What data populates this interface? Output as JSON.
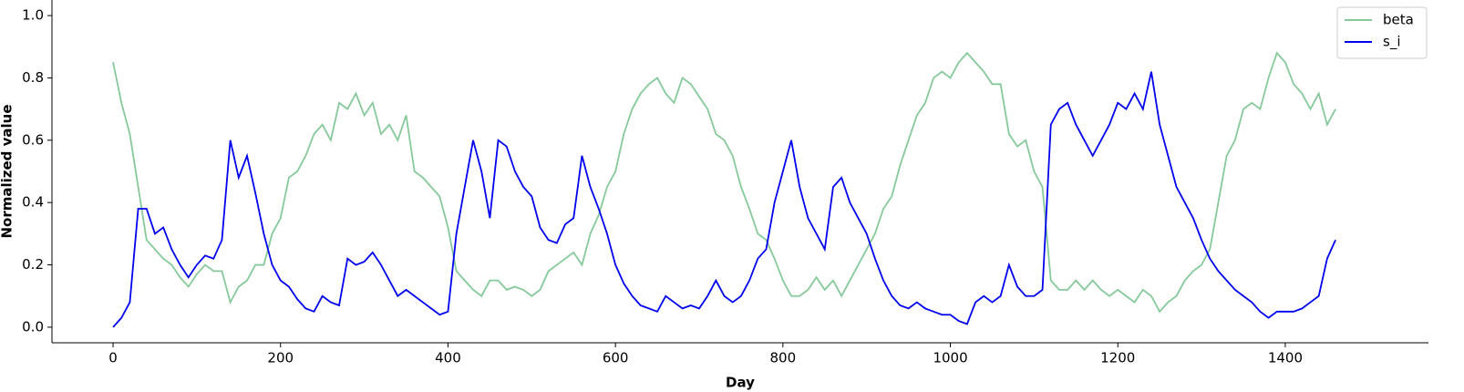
{
  "chart_data": {
    "type": "line",
    "x_label": "Day",
    "y_label": "Normalized value",
    "x": [
      0,
      10,
      20,
      30,
      40,
      50,
      60,
      70,
      80,
      90,
      100,
      110,
      120,
      130,
      140,
      150,
      160,
      170,
      180,
      190,
      200,
      210,
      220,
      230,
      240,
      250,
      260,
      270,
      280,
      290,
      300,
      310,
      320,
      330,
      340,
      350,
      360,
      370,
      380,
      390,
      400,
      410,
      420,
      430,
      440,
      450,
      460,
      470,
      480,
      490,
      500,
      510,
      520,
      530,
      540,
      550,
      560,
      570,
      580,
      590,
      600,
      610,
      620,
      630,
      640,
      650,
      660,
      670,
      680,
      690,
      700,
      710,
      720,
      730,
      740,
      750,
      760,
      770,
      780,
      790,
      800,
      810,
      820,
      830,
      840,
      850,
      860,
      870,
      880,
      890,
      900,
      910,
      920,
      930,
      940,
      950,
      960,
      970,
      980,
      990,
      1000,
      1010,
      1020,
      1030,
      1040,
      1050,
      1060,
      1070,
      1080,
      1090,
      1100,
      1110,
      1120,
      1130,
      1140,
      1150,
      1160,
      1170,
      1180,
      1190,
      1200,
      1210,
      1220,
      1230,
      1240,
      1250,
      1260,
      1270,
      1280,
      1290,
      1300,
      1310,
      1320,
      1330,
      1340,
      1350,
      1360,
      1370,
      1380,
      1390,
      1400,
      1410,
      1420,
      1430,
      1440,
      1450,
      1460
    ],
    "series": [
      {
        "name": "beta",
        "color": "#86c99a",
        "values": [
          0.85,
          0.72,
          0.62,
          0.45,
          0.28,
          0.25,
          0.22,
          0.2,
          0.16,
          0.13,
          0.17,
          0.2,
          0.18,
          0.18,
          0.08,
          0.13,
          0.15,
          0.2,
          0.2,
          0.3,
          0.35,
          0.48,
          0.5,
          0.55,
          0.62,
          0.65,
          0.6,
          0.72,
          0.7,
          0.75,
          0.68,
          0.72,
          0.62,
          0.65,
          0.6,
          0.68,
          0.5,
          0.48,
          0.45,
          0.42,
          0.32,
          0.18,
          0.15,
          0.12,
          0.1,
          0.15,
          0.15,
          0.12,
          0.13,
          0.12,
          0.1,
          0.12,
          0.18,
          0.2,
          0.22,
          0.24,
          0.2,
          0.3,
          0.36,
          0.45,
          0.5,
          0.62,
          0.7,
          0.75,
          0.78,
          0.8,
          0.75,
          0.72,
          0.8,
          0.78,
          0.74,
          0.7,
          0.62,
          0.6,
          0.55,
          0.45,
          0.38,
          0.3,
          0.28,
          0.22,
          0.15,
          0.1,
          0.1,
          0.12,
          0.16,
          0.12,
          0.15,
          0.1,
          0.15,
          0.2,
          0.25,
          0.3,
          0.38,
          0.42,
          0.52,
          0.6,
          0.68,
          0.72,
          0.8,
          0.82,
          0.8,
          0.85,
          0.88,
          0.85,
          0.82,
          0.78,
          0.78,
          0.62,
          0.58,
          0.6,
          0.5,
          0.45,
          0.15,
          0.12,
          0.12,
          0.15,
          0.12,
          0.15,
          0.12,
          0.1,
          0.12,
          0.1,
          0.08,
          0.12,
          0.1,
          0.05,
          0.08,
          0.1,
          0.15,
          0.18,
          0.2,
          0.25,
          0.4,
          0.55,
          0.6,
          0.7,
          0.72,
          0.7,
          0.8,
          0.88,
          0.85,
          0.78,
          0.75,
          0.7,
          0.75,
          0.65,
          0.7
        ]
      },
      {
        "name": "s_i",
        "color": "#0000ee",
        "values": [
          0.0,
          0.03,
          0.08,
          0.38,
          0.38,
          0.3,
          0.32,
          0.25,
          0.2,
          0.16,
          0.2,
          0.23,
          0.22,
          0.28,
          0.6,
          0.48,
          0.55,
          0.43,
          0.3,
          0.2,
          0.15,
          0.13,
          0.09,
          0.06,
          0.05,
          0.1,
          0.08,
          0.07,
          0.22,
          0.2,
          0.21,
          0.24,
          0.2,
          0.15,
          0.1,
          0.12,
          0.1,
          0.08,
          0.06,
          0.04,
          0.05,
          0.3,
          0.45,
          0.6,
          0.5,
          0.35,
          0.6,
          0.58,
          0.5,
          0.45,
          0.42,
          0.32,
          0.28,
          0.27,
          0.33,
          0.35,
          0.55,
          0.45,
          0.38,
          0.3,
          0.2,
          0.14,
          0.1,
          0.07,
          0.06,
          0.05,
          0.1,
          0.08,
          0.06,
          0.07,
          0.06,
          0.1,
          0.15,
          0.1,
          0.08,
          0.1,
          0.15,
          0.22,
          0.25,
          0.4,
          0.5,
          0.6,
          0.45,
          0.35,
          0.3,
          0.25,
          0.45,
          0.48,
          0.4,
          0.35,
          0.3,
          0.22,
          0.15,
          0.1,
          0.07,
          0.06,
          0.08,
          0.06,
          0.05,
          0.04,
          0.04,
          0.02,
          0.01,
          0.08,
          0.1,
          0.08,
          0.1,
          0.2,
          0.13,
          0.1,
          0.1,
          0.12,
          0.65,
          0.7,
          0.72,
          0.65,
          0.6,
          0.55,
          0.6,
          0.65,
          0.72,
          0.7,
          0.75,
          0.7,
          0.82,
          0.65,
          0.55,
          0.45,
          0.4,
          0.35,
          0.28,
          0.22,
          0.18,
          0.15,
          0.12,
          0.1,
          0.08,
          0.05,
          0.03,
          0.05,
          0.05,
          0.05,
          0.06,
          0.08,
          0.1,
          0.22,
          0.28
        ]
      }
    ],
    "xlim": [
      -73,
      1571
    ],
    "ylim": [
      -0.05,
      1.05
    ],
    "xticks": [
      0,
      200,
      400,
      600,
      800,
      1000,
      1200,
      1400
    ],
    "yticks": [
      {
        "value": 0,
        "label": "0.0"
      },
      {
        "value": 0.2,
        "label": "0.2"
      },
      {
        "value": 0.4,
        "label": "0.4"
      },
      {
        "value": 0.6,
        "label": "0.6"
      },
      {
        "value": 0.8,
        "label": "0.8"
      },
      {
        "value": 1,
        "label": "1.0"
      }
    ],
    "legend": "upper right"
  }
}
